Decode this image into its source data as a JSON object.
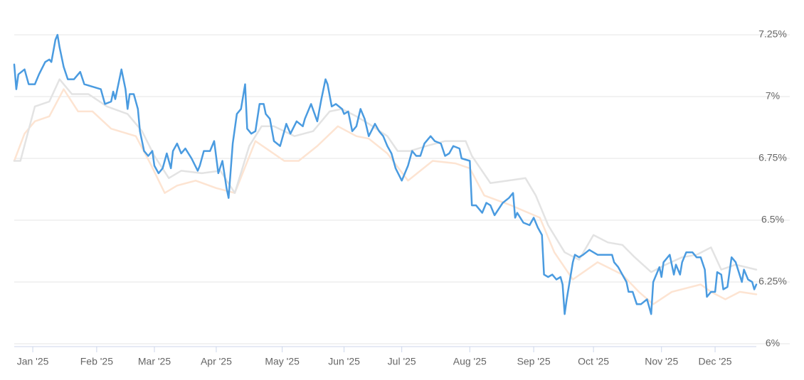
{
  "chart_data": {
    "type": "line",
    "xlim": [
      0,
      360
    ],
    "xticks": [
      {
        "value": 9,
        "label": "Jan '25"
      },
      {
        "value": 40,
        "label": "Feb '25"
      },
      {
        "value": 68,
        "label": "Mar '25"
      },
      {
        "value": 98,
        "label": "Apr '25"
      },
      {
        "value": 130,
        "label": "May '25"
      },
      {
        "value": 160,
        "label": "Jun '25"
      },
      {
        "value": 188,
        "label": "Jul '25"
      },
      {
        "value": 221,
        "label": "Aug '25"
      },
      {
        "value": 252,
        "label": "Sep '25"
      },
      {
        "value": 281,
        "label": "Oct '25"
      },
      {
        "value": 314,
        "label": "Nov '25"
      },
      {
        "value": 340,
        "label": "Dec '25"
      }
    ],
    "ylim": [
      6,
      7.25
    ],
    "yticks": [
      {
        "value": 6,
        "label": "6%"
      },
      {
        "value": 6.25,
        "label": "6.25%"
      },
      {
        "value": 6.5,
        "label": "6.5%"
      },
      {
        "value": 6.75,
        "label": "6.75%"
      },
      {
        "value": 7,
        "label": "7%"
      },
      {
        "value": 7.25,
        "label": "7.25%"
      }
    ],
    "grid": true,
    "series": [
      {
        "color": "#4a9be0",
        "x": [
          0,
          1,
          2,
          5,
          7,
          10,
          12,
          15,
          17,
          18,
          20,
          21,
          22,
          24,
          26,
          29,
          32,
          34,
          38,
          42,
          44,
          47,
          48,
          49,
          52,
          54,
          55,
          56,
          58,
          60,
          61,
          63,
          65,
          67,
          68,
          70,
          72,
          74,
          76,
          77,
          79,
          81,
          83,
          86,
          89,
          90,
          92,
          95,
          97,
          99,
          101,
          103,
          104,
          106,
          108,
          110,
          112,
          113,
          115,
          117,
          119,
          121,
          122,
          124,
          126,
          129,
          130,
          132,
          134,
          137,
          140,
          141,
          144,
          147,
          149,
          151,
          152,
          154,
          156,
          159,
          160,
          162,
          164,
          166,
          168,
          170,
          172,
          175,
          177,
          179,
          181,
          183,
          185,
          188,
          190,
          191,
          193,
          195,
          197,
          199,
          202,
          204,
          207,
          209,
          211,
          213,
          216,
          217,
          221,
          222,
          224,
          227,
          229,
          231,
          233,
          237,
          240,
          242,
          243,
          244,
          247,
          250,
          252,
          254,
          256,
          257,
          259,
          261,
          263,
          265,
          266,
          267,
          268,
          271,
          272,
          274,
          276,
          279,
          283,
          286,
          290,
          291,
          293,
          295,
          297,
          298,
          300,
          302,
          304,
          307,
          309,
          310,
          313,
          314,
          315,
          318,
          320,
          321,
          323,
          324,
          326,
          329,
          331,
          333,
          335,
          336,
          338,
          340,
          341,
          343,
          344,
          346,
          348,
          350,
          353,
          354,
          356,
          358,
          359,
          360
        ],
        "values": [
          7.13,
          7.03,
          7.09,
          7.11,
          7.05,
          7.05,
          7.09,
          7.14,
          7.15,
          7.14,
          7.23,
          7.25,
          7.2,
          7.12,
          7.07,
          7.07,
          7.1,
          7.05,
          7.04,
          7.03,
          6.97,
          6.98,
          7.02,
          6.99,
          7.11,
          7.03,
          6.95,
          7.01,
          7.01,
          6.95,
          6.86,
          6.78,
          6.76,
          6.78,
          6.72,
          6.69,
          6.71,
          6.77,
          6.71,
          6.78,
          6.81,
          6.77,
          6.79,
          6.75,
          6.7,
          6.72,
          6.78,
          6.78,
          6.82,
          6.69,
          6.74,
          6.63,
          6.59,
          6.81,
          6.93,
          6.95,
          7.05,
          6.87,
          6.85,
          6.86,
          6.97,
          6.97,
          6.93,
          6.91,
          6.82,
          6.8,
          6.83,
          6.89,
          6.85,
          6.9,
          6.88,
          6.91,
          6.97,
          6.9,
          6.99,
          7.07,
          7.05,
          6.96,
          6.97,
          6.95,
          6.93,
          6.94,
          6.86,
          6.88,
          6.95,
          6.91,
          6.84,
          6.89,
          6.86,
          6.84,
          6.8,
          6.77,
          6.71,
          6.66,
          6.7,
          6.72,
          6.78,
          6.76,
          6.76,
          6.81,
          6.84,
          6.82,
          6.81,
          6.76,
          6.77,
          6.8,
          6.79,
          6.75,
          6.74,
          6.56,
          6.56,
          6.53,
          6.57,
          6.56,
          6.52,
          6.57,
          6.59,
          6.61,
          6.51,
          6.53,
          6.49,
          6.48,
          6.51,
          6.47,
          6.44,
          6.28,
          6.27,
          6.28,
          6.26,
          6.27,
          6.24,
          6.12,
          6.18,
          6.33,
          6.36,
          6.35,
          6.36,
          6.38,
          6.36,
          6.36,
          6.36,
          6.33,
          6.31,
          6.28,
          6.25,
          6.21,
          6.21,
          6.16,
          6.16,
          6.18,
          6.12,
          6.25,
          6.31,
          6.27,
          6.33,
          6.36,
          6.28,
          6.32,
          6.28,
          6.33,
          6.37,
          6.37,
          6.35,
          6.35,
          6.3,
          6.19,
          6.21,
          6.21,
          6.29,
          6.28,
          6.22,
          6.23,
          6.35,
          6.33,
          6.25,
          6.3,
          6.26,
          6.25,
          6.22,
          6.24
        ]
      },
      {
        "color": "#e3e3e3",
        "x": [
          0,
          3,
          10,
          17,
          22,
          28,
          36,
          45,
          55,
          62,
          68,
          75,
          81,
          91,
          100,
          107,
          114,
          120,
          126,
          136,
          145,
          153,
          159,
          166,
          172,
          181,
          186,
          192,
          200,
          209,
          219,
          222,
          231,
          248,
          253,
          259,
          267,
          274,
          281,
          288,
          295,
          301,
          309,
          316,
          324,
          331,
          338,
          343,
          350,
          360
        ],
        "values": [
          6.74,
          6.74,
          6.96,
          6.98,
          7.07,
          7.01,
          7.01,
          6.96,
          6.93,
          6.86,
          6.76,
          6.67,
          6.7,
          6.69,
          6.7,
          6.61,
          6.8,
          6.88,
          6.88,
          6.84,
          6.86,
          6.94,
          6.95,
          6.92,
          6.89,
          6.84,
          6.78,
          6.78,
          6.8,
          6.82,
          6.82,
          6.76,
          6.65,
          6.67,
          6.6,
          6.48,
          6.37,
          6.34,
          6.44,
          6.41,
          6.4,
          6.35,
          6.29,
          6.32,
          6.35,
          6.36,
          6.39,
          6.3,
          6.32,
          6.3
        ]
      },
      {
        "color": "#fde4d2",
        "x": [
          0,
          5,
          10,
          17,
          24,
          31,
          38,
          47,
          59,
          66,
          73,
          79,
          88,
          98,
          107,
          117,
          131,
          138,
          147,
          157,
          166,
          172,
          181,
          191,
          203,
          214,
          221,
          228,
          241,
          255,
          262,
          271,
          283,
          295,
          303,
          310,
          319,
          333,
          338,
          345,
          352,
          360
        ],
        "values": [
          6.74,
          6.85,
          6.9,
          6.92,
          7.03,
          6.94,
          6.94,
          6.87,
          6.84,
          6.73,
          6.61,
          6.64,
          6.66,
          6.63,
          6.61,
          6.82,
          6.74,
          6.74,
          6.8,
          6.88,
          6.84,
          6.83,
          6.77,
          6.66,
          6.74,
          6.73,
          6.71,
          6.6,
          6.56,
          6.51,
          6.37,
          6.26,
          6.33,
          6.28,
          6.21,
          6.16,
          6.21,
          6.24,
          6.21,
          6.18,
          6.21,
          6.2
        ]
      }
    ]
  }
}
